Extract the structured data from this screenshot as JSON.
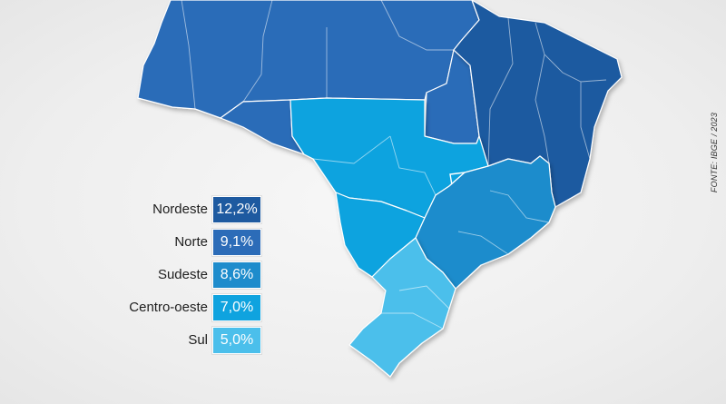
{
  "colors": {
    "nordeste": "#1e5aa0",
    "norte": "#2c6cb8",
    "sudeste": "#1e8ccc",
    "centro_oeste": "#0fa3df",
    "sul": "#4bbfeb"
  },
  "legend": [
    {
      "region": "Nordeste",
      "value": "12,2%",
      "color": "#1e5aa0"
    },
    {
      "region": "Norte",
      "value": "9,1%",
      "color": "#2c6cb8"
    },
    {
      "region": "Sudeste",
      "value": "8,6%",
      "color": "#1e8ccc"
    },
    {
      "region": "Centro-oeste",
      "value": "7,0%",
      "color": "#0fa3df"
    },
    {
      "region": "Sul",
      "value": "5,0%",
      "color": "#4bbfeb"
    }
  ],
  "source": "FONTE: IBGE / 2023"
}
